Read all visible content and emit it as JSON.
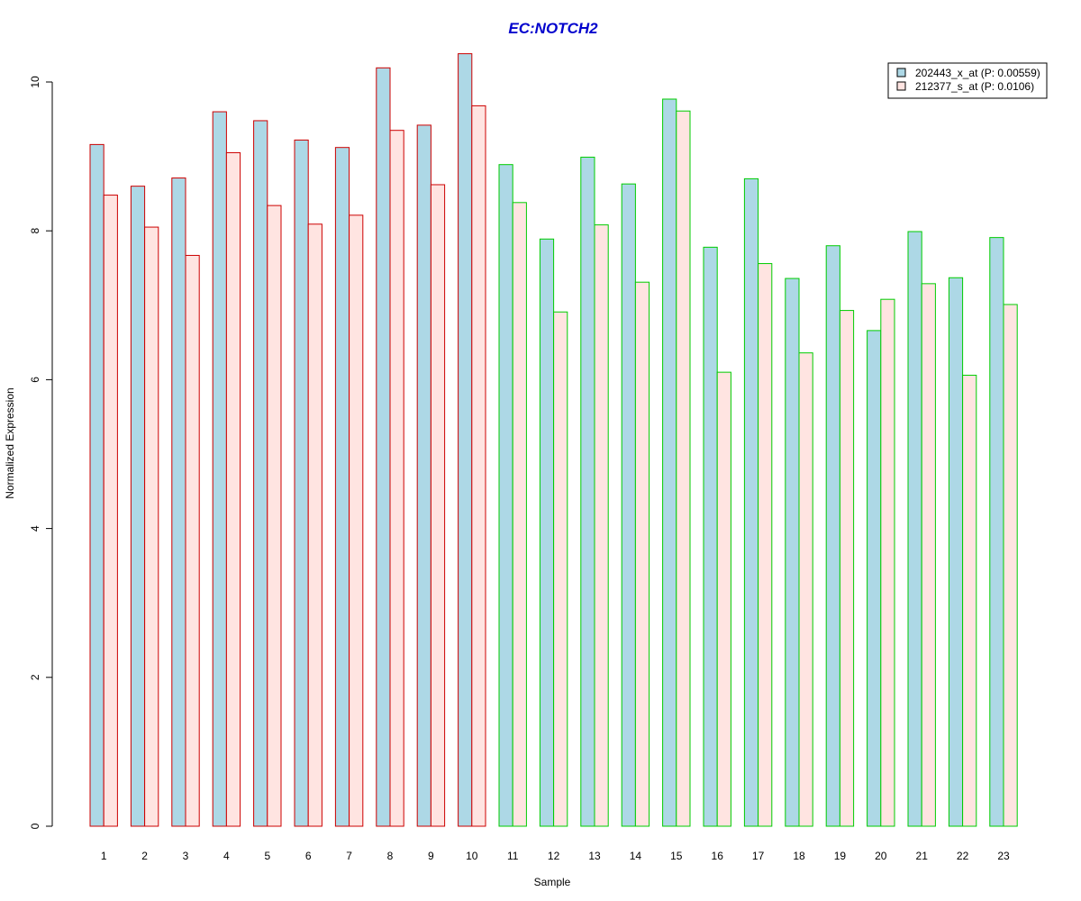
{
  "chart_data": {
    "type": "bar",
    "title": "EC:NOTCH2",
    "title_color": "#0000CD",
    "xlabel": "Sample",
    "ylabel": "Normalized Expression",
    "ylim": [
      0,
      10.4
    ],
    "yticks": [
      0,
      2,
      4,
      6,
      8,
      10
    ],
    "categories": [
      "1",
      "2",
      "3",
      "4",
      "5",
      "6",
      "7",
      "8",
      "9",
      "10",
      "11",
      "12",
      "13",
      "14",
      "15",
      "16",
      "17",
      "18",
      "19",
      "20",
      "21",
      "22",
      "23"
    ],
    "series": [
      {
        "name": "202443_x_at (P: 0.00559)",
        "fill": "#ADD8E6",
        "values": [
          9.16,
          8.6,
          8.71,
          9.6,
          9.48,
          9.22,
          9.12,
          10.19,
          9.42,
          10.38,
          8.89,
          7.89,
          8.99,
          8.63,
          9.77,
          7.78,
          8.7,
          7.36,
          7.8,
          6.66,
          7.99,
          7.37,
          7.91
        ]
      },
      {
        "name": "212377_s_at (P: 0.0106)",
        "fill": "#FFE4E1",
        "values": [
          8.48,
          8.05,
          7.67,
          9.05,
          8.34,
          8.09,
          8.21,
          9.35,
          8.62,
          9.68,
          8.38,
          6.91,
          8.08,
          7.31,
          9.61,
          6.1,
          7.56,
          6.36,
          6.93,
          7.08,
          7.29,
          6.06,
          7.01
        ]
      }
    ],
    "group_border_colors": [
      "#CC0000",
      "#CC0000",
      "#CC0000",
      "#CC0000",
      "#CC0000",
      "#CC0000",
      "#CC0000",
      "#CC0000",
      "#CC0000",
      "#CC0000",
      "#00CC00",
      "#00CC00",
      "#00CC00",
      "#00CC00",
      "#00CC00",
      "#00CC00",
      "#00CC00",
      "#00CC00",
      "#00CC00",
      "#00CC00",
      "#00CC00",
      "#00CC00",
      "#00CC00"
    ],
    "legend_position": "top-right",
    "grid": false
  }
}
